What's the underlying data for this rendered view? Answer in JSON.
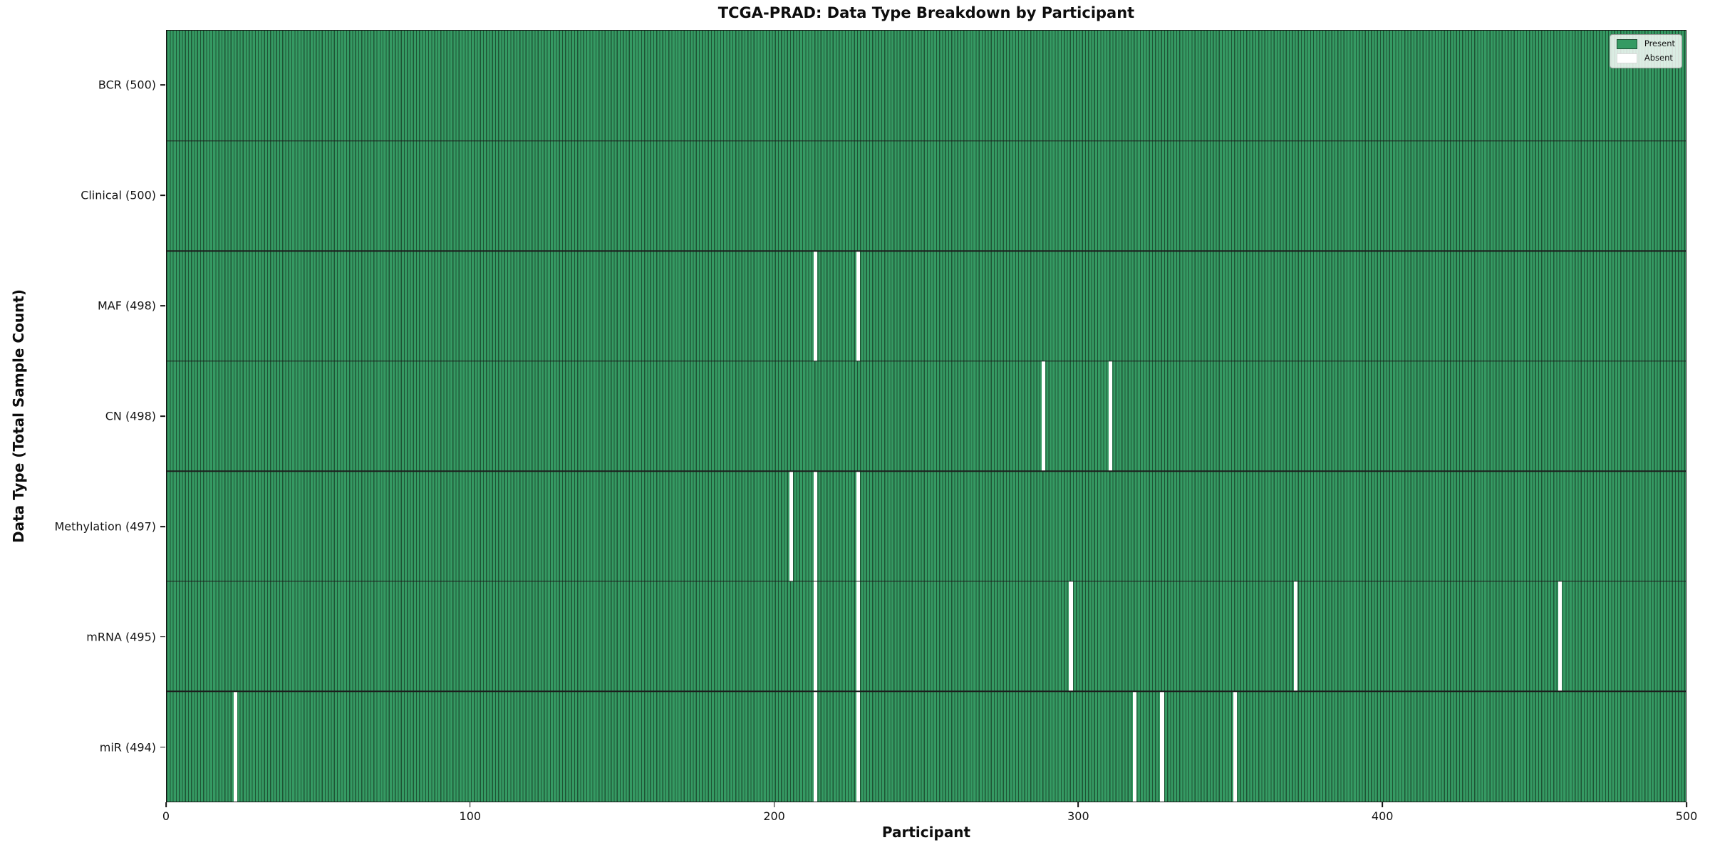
{
  "colors": {
    "present": "#359a63",
    "cell_edge": "#1e5435",
    "absent": "#ffffff",
    "separator": "#1c1c1c"
  },
  "chart_data": {
    "type": "heatmap",
    "title": "TCGA-PRAD: Data Type Breakdown by Participant",
    "xlabel": "Participant",
    "ylabel": "Data Type (Total Sample Count)",
    "xlim": [
      0,
      500
    ],
    "x_ticks": [
      0,
      100,
      200,
      300,
      400,
      500
    ],
    "n_participants": 500,
    "grid": false,
    "legend": {
      "position": "upper right",
      "entries": [
        {
          "label": "Present",
          "color": "#359a63"
        },
        {
          "label": "Absent",
          "color": "#ffffff"
        }
      ]
    },
    "rows": [
      {
        "label": "BCR (500)",
        "data_type": "BCR",
        "total": 500,
        "absent_participants": []
      },
      {
        "label": "Clinical (500)",
        "data_type": "Clinical",
        "total": 500,
        "absent_participants": []
      },
      {
        "label": "MAF (498)",
        "data_type": "MAF",
        "total": 498,
        "absent_participants": [
          213,
          227
        ]
      },
      {
        "label": "CN (498)",
        "data_type": "CN",
        "total": 498,
        "absent_participants": [
          288,
          310
        ]
      },
      {
        "label": "Methylation (497)",
        "data_type": "Methylation",
        "total": 497,
        "absent_participants": [
          205,
          213,
          227
        ]
      },
      {
        "label": "mRNA (495)",
        "data_type": "mRNA",
        "total": 495,
        "absent_participants": [
          213,
          227,
          297,
          371,
          458
        ]
      },
      {
        "label": "miR (494)",
        "data_type": "miR",
        "total": 494,
        "absent_participants": [
          22,
          213,
          227,
          318,
          327,
          351
        ]
      }
    ]
  }
}
